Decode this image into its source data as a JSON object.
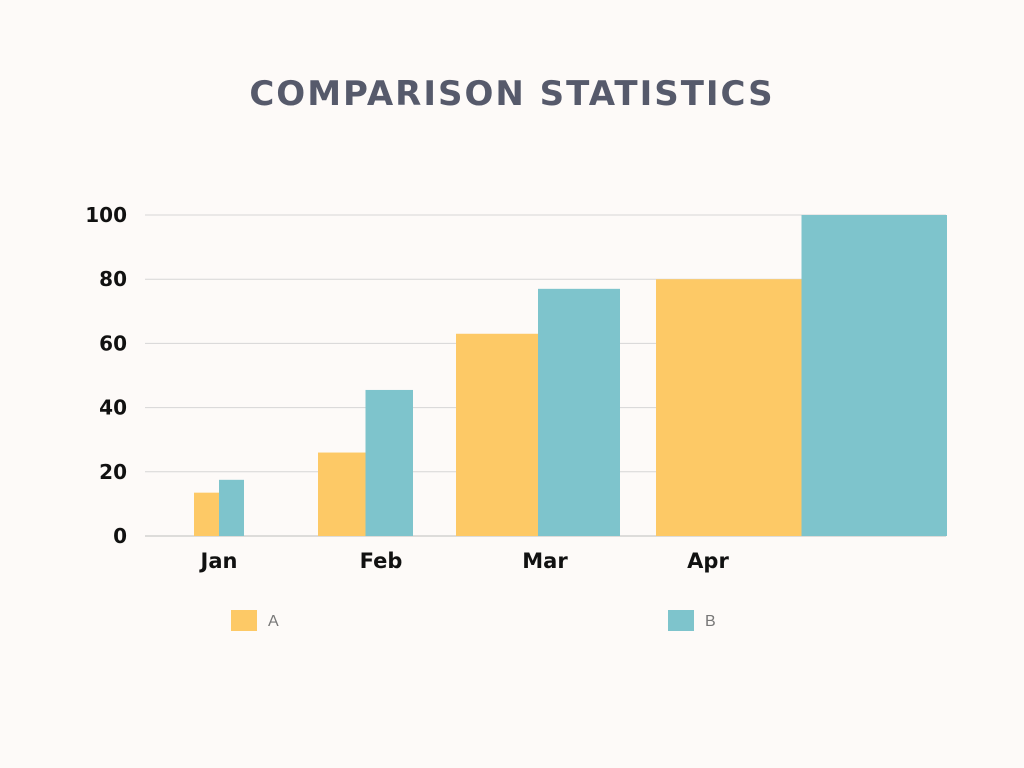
{
  "chart_data": {
    "type": "bar",
    "title": "COMPARISON STATISTICS",
    "categories": [
      "Jan",
      "Feb",
      "Mar",
      "Apr"
    ],
    "series": [
      {
        "name": "A",
        "color": "#fdc966",
        "values": [
          13.5,
          26,
          63,
          80
        ]
      },
      {
        "name": "B",
        "color": "#7ec4cc",
        "values": [
          17.5,
          45.5,
          77,
          100
        ]
      }
    ],
    "yticks": [
      0,
      20,
      40,
      60,
      80,
      100
    ],
    "ylim": [
      0,
      100
    ],
    "grid": true,
    "legend": "bottom"
  }
}
